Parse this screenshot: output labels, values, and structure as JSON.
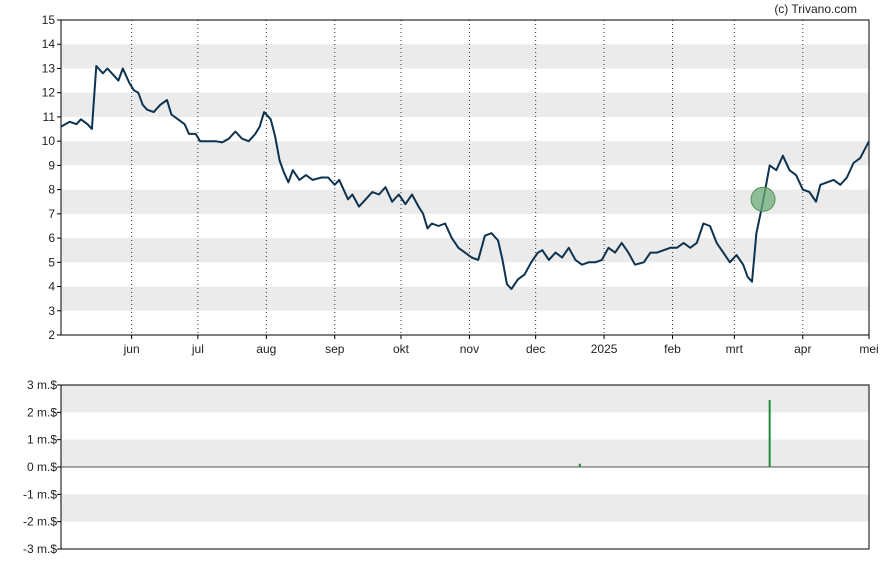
{
  "copyright": "(c) Trivano.com",
  "colors": {
    "price_line": "#0d3350",
    "volume_bar": "#1f8a3a",
    "marker": "#6fae7a",
    "band": "#ebebeb",
    "axis": "#000000"
  },
  "chart_data": [
    {
      "type": "line",
      "title": "",
      "xlabel": "",
      "ylabel": "",
      "ylim": [
        2,
        15
      ],
      "yticks": [
        2,
        3,
        4,
        5,
        6,
        7,
        8,
        9,
        10,
        11,
        12,
        13,
        14,
        15
      ],
      "grid": "alternating horizontal bands, dotted vertical month lines",
      "xlim": [
        "2024-04-30",
        "2025-05-01"
      ],
      "xticks": [
        {
          "date": "2024-06-01",
          "label": "jun"
        },
        {
          "date": "2024-07-01",
          "label": "jul"
        },
        {
          "date": "2024-08-01",
          "label": "aug"
        },
        {
          "date": "2024-09-01",
          "label": "sep"
        },
        {
          "date": "2024-10-01",
          "label": "okt"
        },
        {
          "date": "2024-11-01",
          "label": "nov"
        },
        {
          "date": "2024-12-01",
          "label": "dec"
        },
        {
          "date": "2025-01-01",
          "label": "2025"
        },
        {
          "date": "2025-02-01",
          "label": "feb"
        },
        {
          "date": "2025-03-01",
          "label": "mrt"
        },
        {
          "date": "2025-04-01",
          "label": "apr"
        },
        {
          "date": "2025-05-01",
          "label": "mei"
        }
      ],
      "series": [
        {
          "points": [
            [
              "2024-04-30",
              10.6
            ],
            [
              "2024-05-04",
              10.8
            ],
            [
              "2024-05-07",
              10.7
            ],
            [
              "2024-05-09",
              10.9
            ],
            [
              "2024-05-12",
              10.7
            ],
            [
              "2024-05-14",
              10.5
            ],
            [
              "2024-05-16",
              13.1
            ],
            [
              "2024-05-19",
              12.8
            ],
            [
              "2024-05-21",
              13.0
            ],
            [
              "2024-05-24",
              12.7
            ],
            [
              "2024-05-26",
              12.5
            ],
            [
              "2024-05-28",
              13.0
            ],
            [
              "2024-05-31",
              12.4
            ],
            [
              "2024-06-02",
              12.1
            ],
            [
              "2024-06-04",
              12.0
            ],
            [
              "2024-06-06",
              11.5
            ],
            [
              "2024-06-08",
              11.3
            ],
            [
              "2024-06-11",
              11.2
            ],
            [
              "2024-06-14",
              11.5
            ],
            [
              "2024-06-17",
              11.7
            ],
            [
              "2024-06-19",
              11.1
            ],
            [
              "2024-06-22",
              10.9
            ],
            [
              "2024-06-25",
              10.7
            ],
            [
              "2024-06-27",
              10.3
            ],
            [
              "2024-06-30",
              10.3
            ],
            [
              "2024-07-02",
              10.0
            ],
            [
              "2024-07-05",
              10.0
            ],
            [
              "2024-07-09",
              10.0
            ],
            [
              "2024-07-12",
              9.95
            ],
            [
              "2024-07-15",
              10.1
            ],
            [
              "2024-07-18",
              10.4
            ],
            [
              "2024-07-21",
              10.1
            ],
            [
              "2024-07-24",
              10.0
            ],
            [
              "2024-07-27",
              10.3
            ],
            [
              "2024-07-29",
              10.6
            ],
            [
              "2024-07-31",
              11.2
            ],
            [
              "2024-08-03",
              10.9
            ],
            [
              "2024-08-05",
              10.2
            ],
            [
              "2024-08-07",
              9.2
            ],
            [
              "2024-08-09",
              8.7
            ],
            [
              "2024-08-11",
              8.3
            ],
            [
              "2024-08-13",
              8.8
            ],
            [
              "2024-08-16",
              8.4
            ],
            [
              "2024-08-19",
              8.6
            ],
            [
              "2024-08-22",
              8.4
            ],
            [
              "2024-08-26",
              8.5
            ],
            [
              "2024-08-29",
              8.5
            ],
            [
              "2024-09-01",
              8.2
            ],
            [
              "2024-09-03",
              8.4
            ],
            [
              "2024-09-05",
              8.0
            ],
            [
              "2024-09-07",
              7.6
            ],
            [
              "2024-09-09",
              7.8
            ],
            [
              "2024-09-12",
              7.3
            ],
            [
              "2024-09-15",
              7.6
            ],
            [
              "2024-09-18",
              7.9
            ],
            [
              "2024-09-21",
              7.8
            ],
            [
              "2024-09-24",
              8.1
            ],
            [
              "2024-09-27",
              7.5
            ],
            [
              "2024-09-30",
              7.8
            ],
            [
              "2024-10-03",
              7.4
            ],
            [
              "2024-10-06",
              7.8
            ],
            [
              "2024-10-09",
              7.3
            ],
            [
              "2024-10-11",
              7.0
            ],
            [
              "2024-10-13",
              6.4
            ],
            [
              "2024-10-15",
              6.6
            ],
            [
              "2024-10-18",
              6.5
            ],
            [
              "2024-10-21",
              6.6
            ],
            [
              "2024-10-24",
              6.0
            ],
            [
              "2024-10-27",
              5.6
            ],
            [
              "2024-10-30",
              5.4
            ],
            [
              "2024-11-02",
              5.2
            ],
            [
              "2024-11-05",
              5.1
            ],
            [
              "2024-11-08",
              6.1
            ],
            [
              "2024-11-11",
              6.2
            ],
            [
              "2024-11-14",
              5.9
            ],
            [
              "2024-11-16",
              5.1
            ],
            [
              "2024-11-18",
              4.1
            ],
            [
              "2024-11-20",
              3.9
            ],
            [
              "2024-11-23",
              4.3
            ],
            [
              "2024-11-26",
              4.5
            ],
            [
              "2024-11-29",
              5.0
            ],
            [
              "2024-12-02",
              5.4
            ],
            [
              "2024-12-04",
              5.5
            ],
            [
              "2024-12-07",
              5.1
            ],
            [
              "2024-12-10",
              5.4
            ],
            [
              "2024-12-13",
              5.2
            ],
            [
              "2024-12-16",
              5.6
            ],
            [
              "2024-12-19",
              5.1
            ],
            [
              "2024-12-22",
              4.9
            ],
            [
              "2024-12-25",
              5.0
            ],
            [
              "2024-12-28",
              5.0
            ],
            [
              "2024-12-31",
              5.1
            ],
            [
              "2025-01-03",
              5.6
            ],
            [
              "2025-01-06",
              5.4
            ],
            [
              "2025-01-09",
              5.8
            ],
            [
              "2025-01-12",
              5.4
            ],
            [
              "2025-01-15",
              4.9
            ],
            [
              "2025-01-19",
              5.0
            ],
            [
              "2025-01-22",
              5.4
            ],
            [
              "2025-01-25",
              5.4
            ],
            [
              "2025-01-28",
              5.5
            ],
            [
              "2025-01-31",
              5.6
            ],
            [
              "2025-02-03",
              5.6
            ],
            [
              "2025-02-06",
              5.8
            ],
            [
              "2025-02-09",
              5.6
            ],
            [
              "2025-02-12",
              5.8
            ],
            [
              "2025-02-15",
              6.6
            ],
            [
              "2025-02-18",
              6.5
            ],
            [
              "2025-02-21",
              5.8
            ],
            [
              "2025-02-24",
              5.4
            ],
            [
              "2025-02-27",
              5.0
            ],
            [
              "2025-03-02",
              5.3
            ],
            [
              "2025-03-05",
              4.9
            ],
            [
              "2025-03-07",
              4.4
            ],
            [
              "2025-03-09",
              4.2
            ],
            [
              "2025-03-11",
              6.2
            ],
            [
              "2025-03-14",
              7.5
            ],
            [
              "2025-03-17",
              9.0
            ],
            [
              "2025-03-20",
              8.8
            ],
            [
              "2025-03-23",
              9.4
            ],
            [
              "2025-03-26",
              8.8
            ],
            [
              "2025-03-29",
              8.6
            ],
            [
              "2025-04-01",
              8.0
            ],
            [
              "2025-04-04",
              7.9
            ],
            [
              "2025-04-07",
              7.5
            ],
            [
              "2025-04-09",
              8.2
            ],
            [
              "2025-04-12",
              8.3
            ],
            [
              "2025-04-15",
              8.4
            ],
            [
              "2025-04-18",
              8.2
            ],
            [
              "2025-04-21",
              8.5
            ],
            [
              "2025-04-24",
              9.1
            ],
            [
              "2025-04-27",
              9.3
            ],
            [
              "2025-05-01",
              10.0
            ]
          ]
        }
      ],
      "markers": [
        {
          "date": "2025-03-14",
          "y": 7.6
        }
      ]
    },
    {
      "type": "bar",
      "title": "",
      "xlabel": "",
      "ylabel": "",
      "ylim": [
        -3,
        3
      ],
      "yticks": [
        {
          "value": 3,
          "label": "3 m.$"
        },
        {
          "value": 2,
          "label": "2 m.$"
        },
        {
          "value": 1,
          "label": "1 m.$"
        },
        {
          "value": 0,
          "label": "0 m.$"
        },
        {
          "value": -1,
          "label": "-1 m.$"
        },
        {
          "value": -2,
          "label": "-2 m.$"
        },
        {
          "value": -3,
          "label": "-3 m.$"
        }
      ],
      "bars": [
        {
          "date": "2024-12-21",
          "value": 0.12
        },
        {
          "date": "2025-03-17",
          "value": 2.45
        }
      ]
    }
  ]
}
